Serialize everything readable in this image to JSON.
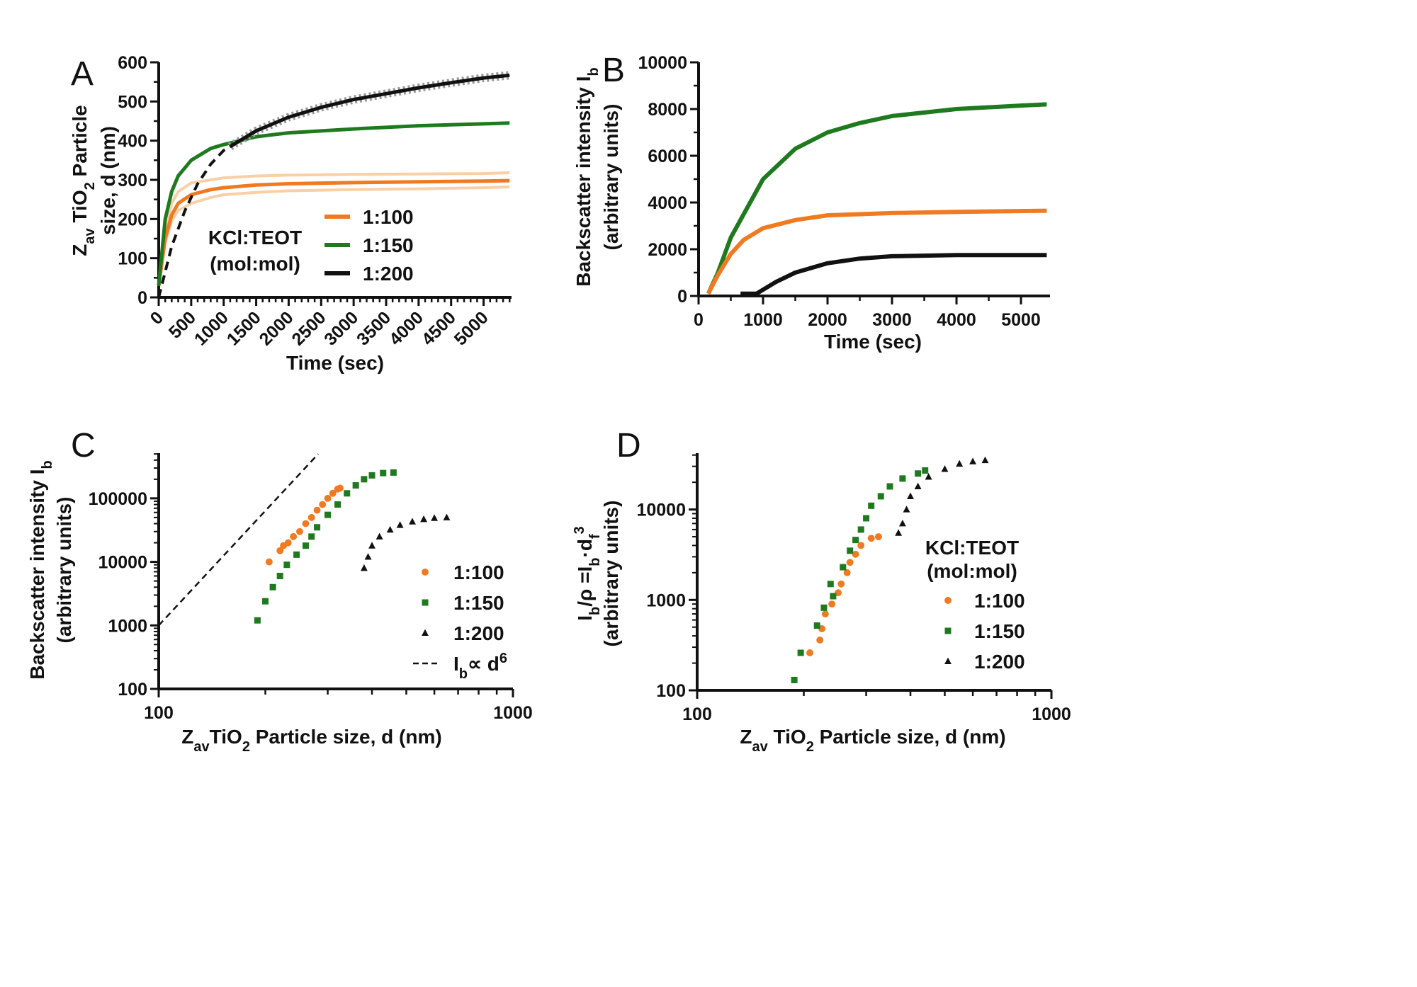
{
  "colors": {
    "1:100": "#f07a22",
    "1:100_light": "#f8cfa6",
    "1:150": "#1f7a1f",
    "1:150_light": "#7fc27f",
    "1:200": "#111111",
    "1:200_light": "#9a9a9a"
  },
  "chart_data": [
    {
      "panel": "A",
      "type": "line",
      "xlabel": "Time (sec)",
      "ylabel": {
        "line1": [
          "Z",
          "av",
          " TiO",
          "2",
          " Particle"
        ],
        "line2": "size, d (nm)"
      },
      "xlim": [
        0,
        5430
      ],
      "ylim": [
        0,
        600
      ],
      "xticks": [
        "0",
        "500",
        "1000",
        "1500",
        "2000",
        "2500",
        "3000",
        "3500",
        "4000",
        "4500",
        "5000"
      ],
      "yticks": [
        "0",
        "100",
        "200",
        "300",
        "400",
        "500",
        "600"
      ],
      "legend": {
        "title1": "KCl:TEOT",
        "title2": "(mol:mol)",
        "placement": "center-right"
      },
      "series": [
        {
          "name": "1:100",
          "x": [
            0,
            100,
            200,
            300,
            500,
            800,
            1000,
            1500,
            2000,
            3000,
            4000,
            5000,
            5400
          ],
          "y": [
            30,
            150,
            210,
            240,
            262,
            275,
            280,
            287,
            290,
            293,
            295,
            297,
            298
          ],
          "replicate_upper": [
            30,
            170,
            240,
            270,
            292,
            300,
            305,
            310,
            312,
            314,
            315,
            316,
            318
          ],
          "replicate_lower": [
            30,
            140,
            195,
            222,
            240,
            255,
            262,
            268,
            272,
            275,
            277,
            280,
            282
          ]
        },
        {
          "name": "1:150",
          "x": [
            0,
            100,
            200,
            300,
            500,
            800,
            1000,
            1500,
            2000,
            3000,
            4000,
            5000,
            5400
          ],
          "y": [
            30,
            200,
            270,
            310,
            350,
            380,
            390,
            410,
            420,
            430,
            438,
            443,
            445
          ]
        },
        {
          "name": "1:200",
          "x": [
            1100,
            1500,
            2000,
            2500,
            3000,
            3500,
            4000,
            4500,
            5000,
            5400
          ],
          "y": [
            385,
            425,
            460,
            485,
            505,
            520,
            535,
            548,
            560,
            567
          ],
          "fit": {
            "x": [
              0,
              200,
              400,
              600,
              800,
              1000,
              1200
            ],
            "y": [
              0,
              130,
              220,
              290,
              340,
              375,
              395
            ]
          }
        }
      ]
    },
    {
      "panel": "B",
      "type": "line",
      "xlabel": "Time (sec)",
      "ylabel": {
        "line1": [
          "Backscatter intensity I",
          "b"
        ],
        "line2": "(arbitrary units)"
      },
      "xlim": [
        0,
        5450
      ],
      "ylim": [
        0,
        10000
      ],
      "xticks": [
        "0",
        "1000",
        "2000",
        "3000",
        "4000",
        "5000"
      ],
      "yticks": [
        "0",
        "2000",
        "4000",
        "6000",
        "8000",
        "10000"
      ],
      "series": [
        {
          "name": "1:150",
          "x": [
            150,
            300,
            500,
            700,
            1000,
            1500,
            2000,
            2500,
            3000,
            4000,
            5000,
            5400
          ],
          "y": [
            100,
            1000,
            2500,
            3500,
            5000,
            6300,
            7000,
            7400,
            7700,
            8000,
            8150,
            8200
          ]
        },
        {
          "name": "1:100",
          "x": [
            150,
            300,
            500,
            700,
            1000,
            1500,
            2000,
            3000,
            4000,
            5400
          ],
          "y": [
            100,
            900,
            1800,
            2400,
            2900,
            3250,
            3450,
            3550,
            3600,
            3650
          ]
        },
        {
          "name": "1:200",
          "x": [
            650,
            900,
            1200,
            1500,
            2000,
            2500,
            3000,
            4000,
            5400
          ],
          "y": [
            100,
            100,
            600,
            1000,
            1400,
            1600,
            1700,
            1750,
            1750
          ]
        }
      ]
    },
    {
      "panel": "C",
      "type": "scatter",
      "xscale": "log",
      "yscale": "log",
      "xlabel": [
        "Z",
        "av",
        "TiO",
        "2",
        " Particle size, d (nm)"
      ],
      "ylabel": {
        "line1": [
          "Backscatter intensity I",
          "b"
        ],
        "line2": "(arbitrary units)"
      },
      "xlim": [
        100,
        1000
      ],
      "ylim": [
        100,
        515000
      ],
      "xticks": [
        "100",
        "1000"
      ],
      "yticks": [
        "100",
        "1000",
        "10000",
        "100000"
      ],
      "legend": {
        "placement": "bottom-right",
        "reference_label": [
          "I",
          "b",
          "∝ d",
          "6"
        ]
      },
      "reference_line": {
        "x": [
          100,
          282
        ],
        "y": [
          1000,
          500000
        ]
      },
      "series": [
        {
          "name": "1:100",
          "marker": "circle",
          "x": [
            205,
            220,
            225,
            232,
            240,
            250,
            260,
            270,
            280,
            290,
            300,
            310,
            320,
            325
          ],
          "y": [
            10000,
            15000,
            18000,
            20000,
            25000,
            30000,
            40000,
            50000,
            65000,
            80000,
            100000,
            120000,
            140000,
            145000
          ]
        },
        {
          "name": "1:150",
          "marker": "square",
          "x": [
            190,
            200,
            210,
            220,
            230,
            245,
            260,
            270,
            280,
            300,
            320,
            340,
            360,
            380,
            400,
            430,
            460
          ],
          "y": [
            1200,
            2400,
            4000,
            6000,
            9000,
            13000,
            18000,
            25000,
            35000,
            55000,
            80000,
            120000,
            160000,
            200000,
            230000,
            250000,
            255000
          ]
        },
        {
          "name": "1:200",
          "marker": "triangle",
          "x": [
            380,
            390,
            400,
            420,
            450,
            480,
            520,
            560,
            600,
            650
          ],
          "y": [
            8000,
            12000,
            18000,
            25000,
            32000,
            38000,
            43000,
            47000,
            49000,
            50000
          ]
        }
      ]
    },
    {
      "panel": "D",
      "type": "scatter",
      "xscale": "log",
      "yscale": "log",
      "xlabel": [
        "Z",
        "av",
        " TiO",
        "2",
        " Particle size, d (nm)"
      ],
      "ylabel": {
        "line1": [
          "I",
          "b",
          "/ρ =I",
          "b",
          "·d",
          "f",
          "3"
        ],
        "line2": "(arbitrary units)"
      },
      "xlim": [
        100,
        1000
      ],
      "ylim": [
        100,
        42000
      ],
      "xticks": [
        "100",
        "1000"
      ],
      "yticks": [
        "100",
        "1000",
        "10000"
      ],
      "legend": {
        "title1": "KCl:TEOT",
        "title2": "(mol:mol)",
        "placement": "right"
      },
      "series": [
        {
          "name": "1:100",
          "marker": "circle",
          "x": [
            208,
            222,
            225,
            230,
            240,
            250,
            255,
            265,
            270,
            280,
            290,
            310,
            325
          ],
          "y": [
            260,
            360,
            480,
            700,
            900,
            1200,
            1500,
            2000,
            2600,
            3200,
            4000,
            4800,
            5000
          ]
        },
        {
          "name": "1:150",
          "marker": "square",
          "x": [
            188,
            196,
            218,
            228,
            238,
            242,
            258,
            270,
            280,
            290,
            300,
            310,
            330,
            350,
            380,
            420,
            440
          ],
          "y": [
            130,
            260,
            520,
            820,
            1500,
            1100,
            2300,
            3500,
            4600,
            6000,
            8000,
            11000,
            14000,
            18000,
            22000,
            25000,
            27000
          ]
        },
        {
          "name": "1:200",
          "marker": "triangle",
          "x": [
            370,
            380,
            390,
            400,
            420,
            450,
            500,
            550,
            600,
            650
          ],
          "y": [
            5500,
            7000,
            10000,
            14000,
            18000,
            23000,
            28000,
            32000,
            34000,
            35000
          ]
        }
      ]
    }
  ],
  "panel_letters": [
    "A",
    "B",
    "C",
    "D"
  ]
}
